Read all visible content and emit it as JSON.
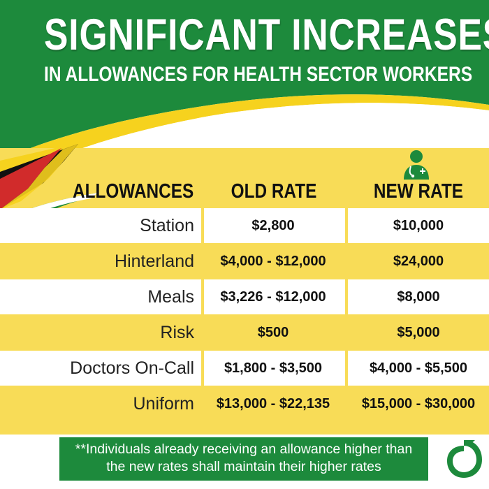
{
  "title": "SIGNIFICANT INCREASES",
  "subtitle": "IN ALLOWANCES FOR HEALTH SECTOR WORKERS",
  "columns": {
    "allowances": "ALLOWANCES",
    "old_rate": "OLD RATE",
    "new_rate": "NEW RATE"
  },
  "rows": [
    {
      "label": "Station",
      "old": "$2,800",
      "new": "$10,000"
    },
    {
      "label": "Hinterland",
      "old": "$4,000 - $12,000",
      "new": "$24,000"
    },
    {
      "label": "Meals",
      "old": "$3,226 - $12,000",
      "new": "$8,000"
    },
    {
      "label": "Risk",
      "old": "$500",
      "new": "$5,000"
    },
    {
      "label": "Doctors On-Call",
      "old": "$1,800 - $3,500",
      "new": "$4,000 - $5,500"
    },
    {
      "label": "Uniform",
      "old": "$13,000 - $22,135",
      "new": "$15,000 - $30,000"
    }
  ],
  "footnote_line1": "**Individuals already receiving an allowance higher than",
  "footnote_line2": "the new rates shall maintain their higher rates",
  "icons": {
    "new_rate_icon": "doctor-icon",
    "logo": "brand-logo"
  },
  "colors": {
    "green": "#1d8a3c",
    "yellow": "#f8dc57",
    "red": "#d12b2b",
    "black": "#111111",
    "white": "#ffffff"
  }
}
